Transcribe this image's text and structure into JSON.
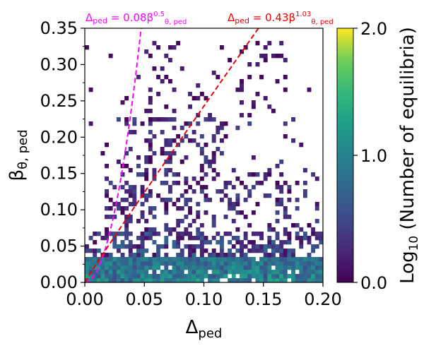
{
  "chart_data": {
    "type": "heatmap",
    "title": "",
    "xlabel": "Δ",
    "xlabel_sub": "ped",
    "ylabel": "β",
    "ylabel_sub": "θ, ped",
    "xlim": [
      0,
      0.2
    ],
    "ylim": [
      0,
      0.35
    ],
    "x_ticks": [
      "0.00",
      "0.05",
      "0.10",
      "0.15",
      "0.20"
    ],
    "y_ticks": [
      "0.00",
      "0.05",
      "0.10",
      "0.15",
      "0.20",
      "0.25",
      "0.30",
      "0.35"
    ],
    "colorbar": {
      "label": "Log",
      "label_sub": "10",
      "label_rest": " (Number of equilibria)",
      "range": [
        0.0,
        2.0
      ],
      "ticks": [
        "0.0",
        "1.0",
        "2.0"
      ],
      "colormap": "viridis"
    },
    "fit_lines": [
      {
        "coef": 0.08,
        "exponent": 0.5,
        "color": "#ff00ff",
        "label_main": "Δ",
        "label_main_sub": "ped",
        "label_eq": " = 0.08β",
        "label_sup": "0.5",
        "label_sub": "θ, ped"
      },
      {
        "coef": 0.43,
        "exponent": 1.03,
        "color": "#ee0000",
        "label_main": "Δ",
        "label_main_sub": "ped",
        "label_eq": " = 0.43β",
        "label_sup": "1.03",
        "label_sub": "θ, ped"
      }
    ],
    "bins": {
      "nx": 60,
      "ny": 60,
      "description_ranges": [
        {
          "x": [
            0.0,
            0.2
          ],
          "y": [
            0.0,
            0.035
          ],
          "level": [
            0.6,
            1.35
          ]
        },
        {
          "x": [
            0.0,
            0.2
          ],
          "y": [
            0.035,
            0.07
          ],
          "level": [
            0.1,
            0.7
          ]
        },
        {
          "x": [
            0.02,
            0.2
          ],
          "y": [
            0.07,
            0.15
          ],
          "level": [
            0.0,
            0.5
          ]
        },
        {
          "x": [
            0.03,
            0.12
          ],
          "y": [
            0.15,
            0.22
          ],
          "level": [
            0.0,
            0.5
          ]
        },
        {
          "x": [
            0.05,
            0.17
          ],
          "y": [
            0.22,
            0.33
          ],
          "level": [
            0.0,
            0.3
          ]
        }
      ]
    }
  }
}
